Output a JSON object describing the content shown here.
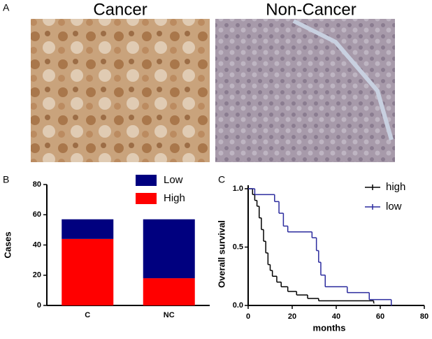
{
  "figure": {
    "panel_labels": [
      "A",
      "B",
      "C"
    ],
    "image_titles": [
      "Cancer",
      "Non-Cancer"
    ]
  },
  "chart_data": [
    {
      "type": "bar",
      "stacked": true,
      "ylabel": "Cases",
      "categories": [
        "C",
        "NC"
      ],
      "series": [
        {
          "name": "High",
          "color": "#ff0000",
          "values": [
            44,
            18
          ]
        },
        {
          "name": "Low",
          "color": "#00007f",
          "values": [
            13,
            39
          ]
        }
      ],
      "ylim": [
        0,
        80
      ],
      "yticks": [
        0,
        20,
        40,
        60,
        80
      ]
    },
    {
      "type": "line",
      "step": true,
      "xlabel": "months",
      "ylabel": "Overall survival",
      "series": [
        {
          "name": "high",
          "color": "#000000",
          "x": [
            0,
            2,
            3,
            4,
            5,
            6,
            7,
            8,
            9,
            10,
            11,
            13,
            15,
            18,
            22,
            27,
            32,
            57
          ],
          "values": [
            1.0,
            0.95,
            0.9,
            0.85,
            0.75,
            0.65,
            0.55,
            0.45,
            0.35,
            0.3,
            0.25,
            0.2,
            0.16,
            0.12,
            0.09,
            0.06,
            0.04,
            0.02
          ]
        },
        {
          "name": "low",
          "color": "#2b2b9e",
          "x": [
            0,
            3,
            12,
            14,
            16,
            18,
            29,
            31,
            32,
            33,
            35,
            45,
            55,
            65
          ],
          "values": [
            1.0,
            0.95,
            0.89,
            0.79,
            0.68,
            0.63,
            0.58,
            0.47,
            0.37,
            0.26,
            0.16,
            0.11,
            0.05,
            0.0
          ]
        }
      ],
      "xlim": [
        0,
        80
      ],
      "xticks": [
        0,
        20,
        40,
        60,
        80
      ],
      "ylim": [
        0,
        1.0
      ],
      "yticks": [
        {
          "value": 0,
          "label": "0.0"
        },
        {
          "value": 0.5,
          "label": "0.5"
        },
        {
          "value": 1.0,
          "label": "1.0"
        }
      ]
    }
  ]
}
